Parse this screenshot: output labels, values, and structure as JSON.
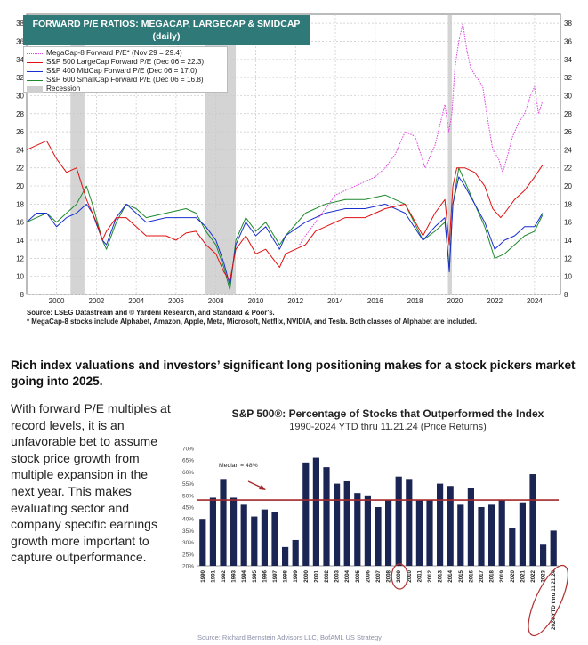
{
  "top_chart": {
    "title_line1": "FORWARD P/E RATIOS: MEGACAP, LARGECAP & SMIDCAP",
    "title_line2": "(daily)",
    "legend": [
      {
        "label": "MegaCap-8 Forward P/E* (Nov 29 = 29.4)",
        "color": "#e040e0",
        "style": "dotted"
      },
      {
        "label": "S&P 500 LargeCap Forward P/E (Dec 06 = 22.3)",
        "color": "#e01010",
        "style": "solid"
      },
      {
        "label": "S&P 400 MidCap Forward P/E (Dec 06 = 17.0)",
        "color": "#1a2fd0",
        "style": "solid"
      },
      {
        "label": "S&P 600 SmallCap Forward P/E (Dec 06 = 16.8)",
        "color": "#1e8a2e",
        "style": "solid"
      },
      {
        "label": "Recession",
        "color": "#cfcfcf",
        "style": "box"
      }
    ],
    "source_line1": "Source: LSEG Datastream and © Yardeni Research, and Standard & Poor's.",
    "source_line2": "* MegaCap-8 stocks include Alphabet, Amazon, Apple, Meta, Microsoft, Netflix, NVIDIA, and Tesla. Both classes of Alphabet are included."
  },
  "headline": "Rich index valuations and investors’ significant long positioning makes for a stock pickers market going into 2025.",
  "body_text": "With forward P/E multiples at record levels, it is an unfavorable bet to assume stock price growth from multiple expansion in the next year. This makes evaluating sector and company specific earnings growth more important to capture outperformance.",
  "bar_chart_text": {
    "title": "S&P 500®: Percentage of Stocks that Outperformed the Index",
    "subtitle": "1990-2024 YTD thru 11.21.24 (Price Returns)",
    "median_label": "Median = 48%",
    "source": "Source: Richard Bernstein Advisors LLC, BofAML US Strategy"
  },
  "chart_data": [
    {
      "type": "line",
      "title": "FORWARD P/E RATIOS: MEGACAP, LARGECAP & SMIDCAP",
      "subtitle": "(daily)",
      "x_ticks": [
        "2000",
        "2002",
        "2004",
        "2006",
        "2008",
        "2010",
        "2012",
        "2014",
        "2016",
        "2018",
        "2020",
        "2022",
        "2024"
      ],
      "y_ticks": [
        8,
        10,
        12,
        14,
        16,
        18,
        20,
        22,
        24,
        26,
        28,
        30,
        32,
        34,
        36,
        38
      ],
      "xlim": [
        1999.0,
        2025.8
      ],
      "ylim": [
        8,
        39
      ],
      "grid": true,
      "recessions": [
        [
          2001.2,
          2001.9
        ],
        [
          2007.95,
          2009.5
        ],
        [
          2020.15,
          2020.35
        ]
      ],
      "series": [
        {
          "name": "MegaCap-8 Forward P/E* (Nov 29 = 29.4)",
          "color": "#e040e0",
          "x": [
            2012.7,
            2013.0,
            2013.5,
            2014.0,
            2014.5,
            2015.0,
            2015.5,
            2016.0,
            2016.5,
            2017.0,
            2017.5,
            2018.0,
            2018.5,
            2019.0,
            2019.5,
            2020.0,
            2020.2,
            2020.35,
            2020.5,
            2020.7,
            2020.9,
            2021.1,
            2021.3,
            2021.6,
            2021.9,
            2022.1,
            2022.4,
            2022.7,
            2022.9,
            2023.1,
            2023.4,
            2023.7,
            2024.0,
            2024.3,
            2024.5,
            2024.7,
            2024.9
          ],
          "y": [
            13.5,
            14.5,
            16,
            17.5,
            19,
            19.5,
            20,
            20.5,
            21,
            22,
            23.5,
            26,
            25.5,
            22,
            24.5,
            29,
            26,
            28,
            33,
            36,
            38,
            35,
            33,
            32,
            31,
            28,
            24,
            23,
            21.5,
            23,
            25.5,
            27,
            28,
            30,
            31,
            28,
            29.4
          ]
        },
        {
          "name": "S&P 500 LargeCap Forward P/E (Dec 06 = 22.3)",
          "color": "#e01010",
          "x": [
            1999.0,
            1999.5,
            2000.0,
            2000.5,
            2001.0,
            2001.5,
            2002.0,
            2002.5,
            2002.8,
            2003.0,
            2003.5,
            2004.0,
            2004.5,
            2005.0,
            2005.5,
            2006.0,
            2006.5,
            2007.0,
            2007.5,
            2008.0,
            2008.5,
            2008.9,
            2009.2,
            2009.5,
            2010.0,
            2010.5,
            2011.0,
            2011.7,
            2012.0,
            2012.5,
            2013.0,
            2013.5,
            2014.0,
            2015.0,
            2016.0,
            2016.5,
            2017.0,
            2018.0,
            2018.9,
            2019.5,
            2020.0,
            2020.22,
            2020.4,
            2020.6,
            2021.0,
            2021.5,
            2022.0,
            2022.4,
            2022.8,
            2023.0,
            2023.5,
            2024.0,
            2024.5,
            2024.9
          ],
          "y": [
            24,
            24.5,
            25,
            23,
            21.5,
            22,
            18.5,
            16,
            14,
            15,
            16.5,
            16.5,
            15.5,
            14.5,
            14.5,
            14.5,
            14,
            14.8,
            15,
            13.5,
            12.5,
            10.5,
            9.5,
            13,
            14.5,
            12.5,
            13,
            11,
            12.5,
            13,
            13.5,
            15,
            15.5,
            16.5,
            16.5,
            17,
            17.5,
            18,
            14.5,
            17,
            18.5,
            13.5,
            20,
            22,
            22,
            21.5,
            20,
            17.5,
            16.5,
            17,
            18.5,
            19.5,
            21,
            22.3
          ]
        },
        {
          "name": "S&P 400 MidCap Forward P/E (Dec 06 = 17.0)",
          "color": "#1a2fd0",
          "x": [
            1999.0,
            1999.5,
            2000.0,
            2000.5,
            2001.0,
            2001.5,
            2002.0,
            2002.3,
            2002.8,
            2003.0,
            2003.5,
            2004.0,
            2004.5,
            2005.0,
            2006.0,
            2007.0,
            2007.5,
            2008.0,
            2008.5,
            2008.9,
            2009.2,
            2009.5,
            2010.0,
            2010.5,
            2011.0,
            2011.7,
            2012.0,
            2013.0,
            2014.0,
            2015.0,
            2016.0,
            2017.0,
            2018.0,
            2018.9,
            2019.5,
            2020.0,
            2020.22,
            2020.4,
            2020.7,
            2021.0,
            2021.5,
            2022.0,
            2022.5,
            2023.0,
            2023.5,
            2024.0,
            2024.5,
            2024.9
          ],
          "y": [
            16,
            17,
            17,
            15.5,
            16.5,
            17,
            18,
            17,
            14,
            13.5,
            16.5,
            18,
            17,
            16,
            16.5,
            16.5,
            16.5,
            15.5,
            14,
            11.5,
            9,
            13.5,
            16,
            14.5,
            15.5,
            13,
            14.5,
            16,
            17,
            17.5,
            17.5,
            18,
            17,
            14,
            15.5,
            16.5,
            10.5,
            18,
            21,
            20,
            18,
            16,
            13,
            14,
            14.5,
            15.5,
            15.5,
            17.0
          ]
        },
        {
          "name": "S&P 600 SmallCap Forward P/E (Dec 06 = 16.8)",
          "color": "#1e8a2e",
          "x": [
            1999.0,
            1999.5,
            2000.0,
            2000.5,
            2001.0,
            2001.5,
            2002.0,
            2002.3,
            2002.8,
            2003.0,
            2003.5,
            2004.0,
            2004.5,
            2005.0,
            2006.0,
            2007.0,
            2007.5,
            2008.0,
            2008.5,
            2008.9,
            2009.2,
            2009.5,
            2010.0,
            2010.5,
            2011.0,
            2011.7,
            2012.0,
            2013.0,
            2014.0,
            2015.0,
            2016.0,
            2017.0,
            2018.0,
            2018.9,
            2019.5,
            2020.0,
            2020.22,
            2020.4,
            2020.7,
            2021.0,
            2021.5,
            2022.0,
            2022.5,
            2023.0,
            2023.5,
            2024.0,
            2024.5,
            2024.9
          ],
          "y": [
            16,
            16.5,
            17,
            16,
            17,
            18,
            20,
            18,
            14,
            13,
            16,
            18,
            17.5,
            16.5,
            17,
            17.5,
            17,
            15,
            13.5,
            11,
            8.5,
            14,
            16.5,
            15,
            16,
            13.5,
            14.5,
            17,
            18,
            18.5,
            18.5,
            19,
            18,
            14,
            15,
            16,
            11,
            18,
            22,
            20.5,
            18,
            15.5,
            12,
            12.5,
            13.5,
            14.5,
            15,
            16.8
          ]
        }
      ]
    },
    {
      "type": "bar",
      "title": "S&P 500®: Percentage of Stocks that Outperformed the Index",
      "subtitle": "1990-2024 YTD thru 11.21.24 (Price Returns)",
      "categories": [
        "1990",
        "1991",
        "1992",
        "1993",
        "1994",
        "1995",
        "1996",
        "1997",
        "1998",
        "1999",
        "2000",
        "2001",
        "2002",
        "2003",
        "2004",
        "2005",
        "2006",
        "2007",
        "2008",
        "2009",
        "2010",
        "2011",
        "2012",
        "2013",
        "2014",
        "2015",
        "2016",
        "2017",
        "2018",
        "2019",
        "2020",
        "2021",
        "2022",
        "2023",
        "2024 YTD thru 11.21.24"
      ],
      "values": [
        40,
        49,
        57,
        49,
        46,
        41,
        44,
        43,
        28,
        31,
        64,
        66,
        62,
        55,
        56,
        51,
        50,
        45,
        48,
        58,
        57,
        48,
        48,
        55,
        54,
        46,
        53,
        45,
        46,
        48,
        36,
        47,
        59,
        29,
        35
      ],
      "y_ticks": [
        "20%",
        "25%",
        "30%",
        "35%",
        "40%",
        "45%",
        "50%",
        "55%",
        "60%",
        "65%",
        "70%"
      ],
      "ylim": [
        20,
        70
      ],
      "median": 48,
      "median_label": "Median = 48%",
      "bar_color": "#1b2553",
      "median_color": "#a3282b",
      "highlighted": [
        "2009",
        "2024 YTD thru 11.21.24"
      ]
    }
  ]
}
